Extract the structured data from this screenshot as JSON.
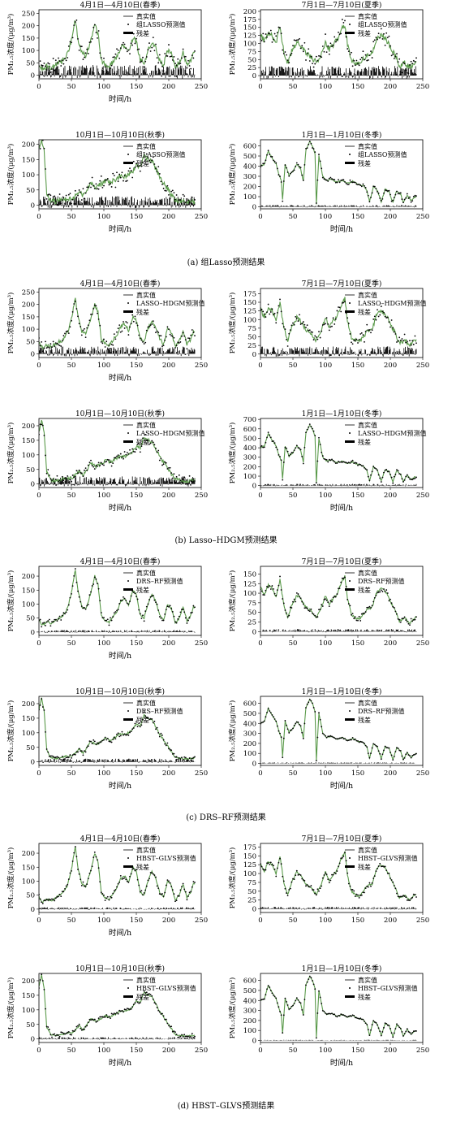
{
  "figure": {
    "captions": [
      "(a) 组Lasso预测结果",
      "(b) Lasso–HDGM预测结果",
      "(c) DRS–RF预测结果",
      "(d) HBST–GLVS预测结果"
    ],
    "colors": {
      "true": "#000000",
      "pred": "#5a9a4a",
      "residual": "#000000"
    }
  },
  "chart_data": [
    {
      "group": "a",
      "type": "line",
      "title": "4月1日—4月10日(春季)",
      "xlabel": "时间/h",
      "ylabel": "PM₂.₅浓度/(μg/m³)",
      "xlim": [
        0,
        250
      ],
      "ylim": [
        -15,
        265
      ],
      "xticks": [
        0,
        50,
        100,
        150,
        200,
        250
      ],
      "yticks": [
        0,
        50,
        100,
        150,
        200,
        250
      ],
      "legend": [
        "真实值",
        "组LASSO预测值",
        "残差"
      ],
      "season": "spring",
      "scale": 1,
      "noise": 26,
      "resid": 55
    },
    {
      "group": "a",
      "type": "line",
      "title": "7月1日—7月10日(夏季)",
      "xlabel": "",
      "ylabel": "PM₂.₅浓度/(μg/m³)",
      "xlim": [
        0,
        250
      ],
      "ylim": [
        -10,
        205
      ],
      "xticks": [
        0,
        50,
        100,
        150,
        200,
        250
      ],
      "yticks": [
        0,
        25,
        50,
        75,
        100,
        125,
        150,
        175,
        200
      ],
      "legend": [
        "真实值",
        "组LASSO预测值",
        "残差"
      ],
      "season": "summer",
      "scale": 1,
      "noise": 22,
      "resid": 40
    },
    {
      "group": "a",
      "type": "line",
      "title": "10月1日—10月10日(秋季)",
      "xlabel": "时间/h",
      "ylabel": "PM₂.₅浓度/(μg/m³)",
      "xlim": [
        0,
        250
      ],
      "ylim": [
        -12,
        215
      ],
      "xticks": [
        0,
        50,
        100,
        150,
        200,
        250
      ],
      "yticks": [
        0,
        50,
        100,
        150,
        200
      ],
      "legend": [
        "真实值",
        "组LASSO预测值",
        "残差"
      ],
      "season": "autumn",
      "scale": 1,
      "noise": 20,
      "resid": 40
    },
    {
      "group": "a",
      "type": "line",
      "title": "1月1日—1月10日(冬季)",
      "xlabel": "时间/h",
      "ylabel": "PM₂.₅浓度/(μg/m³)",
      "xlim": [
        0,
        250
      ],
      "ylim": [
        -20,
        660
      ],
      "xticks": [
        0,
        50,
        100,
        150,
        200,
        250
      ],
      "yticks": [
        0,
        100,
        200,
        300,
        400,
        500,
        600
      ],
      "legend": [
        "真实值",
        "组LASSO预测值",
        "残差"
      ],
      "season": "winter",
      "scale": 1,
      "noise": 18,
      "resid": 25
    },
    {
      "group": "b",
      "type": "line",
      "title": "4月1日—4月10日(春季)",
      "xlabel": "时间/h",
      "ylabel": "PM₂.₅浓度/(μg/m³)",
      "xlim": [
        0,
        250
      ],
      "ylim": [
        -15,
        265
      ],
      "xticks": [
        0,
        50,
        100,
        150,
        200,
        250
      ],
      "yticks": [
        0,
        50,
        100,
        150,
        200,
        250
      ],
      "legend": [
        "真实值",
        "LASSO–HDGM预测值",
        "残差"
      ],
      "season": "spring",
      "scale": 1,
      "noise": 18,
      "resid": 40
    },
    {
      "group": "b",
      "type": "line",
      "title": "7月1日—7月10日(夏季)",
      "xlabel": "",
      "ylabel": "PM₂.₅浓度/(μg/m³)",
      "xlim": [
        0,
        250
      ],
      "ylim": [
        -10,
        190
      ],
      "xticks": [
        0,
        50,
        100,
        150,
        200,
        250
      ],
      "yticks": [
        0,
        25,
        50,
        75,
        100,
        125,
        150,
        175
      ],
      "legend": [
        "真实值",
        "LASSO–HDGM预测值",
        "残差"
      ],
      "season": "summer",
      "scale": 1,
      "noise": 16,
      "resid": 30
    },
    {
      "group": "b",
      "type": "line",
      "title": "10月1日—10月10日(秋季)",
      "xlabel": "时间/h",
      "ylabel": "PM₂.₅浓度/(μg/m³)",
      "xlim": [
        0,
        250
      ],
      "ylim": [
        -12,
        225
      ],
      "xticks": [
        0,
        50,
        100,
        150,
        200,
        250
      ],
      "yticks": [
        0,
        50,
        100,
        150,
        200
      ],
      "legend": [
        "真实值",
        "LASSO–HDGM预测值",
        "残差"
      ],
      "season": "autumn",
      "scale": 1,
      "noise": 15,
      "resid": 35
    },
    {
      "group": "b",
      "type": "line",
      "title": "1月1日—1月10日(冬季)",
      "xlabel": "时间/h",
      "ylabel": "PM₂.₅浓度/(μg/m³)",
      "xlim": [
        0,
        250
      ],
      "ylim": [
        -20,
        710
      ],
      "xticks": [
        0,
        50,
        100,
        150,
        200,
        250
      ],
      "yticks": [
        0,
        100,
        200,
        300,
        400,
        500,
        600,
        700
      ],
      "legend": [
        "真实值",
        "LASSO–HDGM预测值",
        "残差"
      ],
      "season": "winter",
      "scale": 1,
      "noise": 14,
      "resid": 25
    },
    {
      "group": "c",
      "type": "line",
      "title": "4月1日—4月10日(春季)",
      "xlabel": "时间/h",
      "ylabel": "PM₂.₅浓度/(μg/m³)",
      "xlim": [
        0,
        250
      ],
      "ylim": [
        -12,
        235
      ],
      "xticks": [
        0,
        50,
        100,
        150,
        200,
        250
      ],
      "yticks": [
        0,
        50,
        100,
        150,
        200
      ],
      "legend": [
        "真实值",
        "DRS–RF预测值",
        "残差"
      ],
      "season": "spring",
      "scale": 1,
      "noise": 9,
      "resid": 10
    },
    {
      "group": "c",
      "type": "line",
      "title": "7月1日—7月10日(夏季)",
      "xlabel": "",
      "ylabel": "PM₂.₅浓度/(μg/m³)",
      "xlim": [
        0,
        250
      ],
      "ylim": [
        -10,
        170
      ],
      "xticks": [
        0,
        50,
        100,
        150,
        200,
        250
      ],
      "yticks": [
        0,
        25,
        50,
        75,
        100,
        125,
        150
      ],
      "legend": [
        "真实值",
        "DRS–RF预测值",
        "残差"
      ],
      "season": "summer",
      "scale": 0.9,
      "noise": 8,
      "resid": 9
    },
    {
      "group": "c",
      "type": "line",
      "title": "10月1日—10月10日(秋季)",
      "xlabel": "时间/h",
      "ylabel": "PM₂.₅浓度/(μg/m³)",
      "xlim": [
        0,
        250
      ],
      "ylim": [
        -12,
        225
      ],
      "xticks": [
        0,
        50,
        100,
        150,
        200,
        250
      ],
      "yticks": [
        0,
        50,
        100,
        150,
        200
      ],
      "legend": [
        "真实值",
        "DRS–RF预测值",
        "残差"
      ],
      "season": "autumn",
      "scale": 1,
      "noise": 8,
      "resid": 15
    },
    {
      "group": "c",
      "type": "line",
      "title": "1月1日—1月10日(冬季)",
      "xlabel": "时间/h",
      "ylabel": "PM₂.₅浓度/(μg/m³)",
      "xlim": [
        0,
        250
      ],
      "ylim": [
        -20,
        670
      ],
      "xticks": [
        0,
        50,
        100,
        150,
        200,
        250
      ],
      "yticks": [
        0,
        100,
        200,
        300,
        400,
        500,
        600
      ],
      "legend": [
        "真实值",
        "DRS–RF预测值",
        "残差"
      ],
      "season": "winter",
      "scale": 1,
      "noise": 8,
      "resid": 14
    },
    {
      "group": "d",
      "type": "line",
      "title": "4月1日—4月10日(春季)",
      "xlabel": "时间/h",
      "ylabel": "PM₂.₅浓度/(μg/m³)",
      "xlim": [
        0,
        250
      ],
      "ylim": [
        -12,
        235
      ],
      "xticks": [
        0,
        50,
        100,
        150,
        200,
        250
      ],
      "yticks": [
        0,
        50,
        100,
        150,
        200
      ],
      "legend": [
        "真实值",
        "HBST–GLVS预测值",
        "残差"
      ],
      "season": "spring",
      "scale": 1,
      "noise": 8,
      "resid": 9
    },
    {
      "group": "d",
      "type": "line",
      "title": "7月1日—7月10日(夏季)",
      "xlabel": "",
      "ylabel": "PM₂.₅浓度/(μg/m³)",
      "xlim": [
        0,
        250
      ],
      "ylim": [
        -10,
        185
      ],
      "xticks": [
        0,
        50,
        100,
        150,
        200,
        250
      ],
      "yticks": [
        0,
        25,
        50,
        75,
        100,
        125,
        150,
        175
      ],
      "legend": [
        "真实值",
        "HBST–GLVS预测值",
        "残差"
      ],
      "season": "summer",
      "scale": 1,
      "noise": 7,
      "resid": 8
    },
    {
      "group": "d",
      "type": "line",
      "title": "10月1日—10月10日(秋季)",
      "xlabel": "时间/h",
      "ylabel": "PM₂.₅浓度/(μg/m³)",
      "xlim": [
        0,
        250
      ],
      "ylim": [
        -12,
        225
      ],
      "xticks": [
        0,
        50,
        100,
        150,
        200,
        250
      ],
      "yticks": [
        0,
        50,
        100,
        150,
        200
      ],
      "legend": [
        "真实值",
        "HBST–GLVS预测值",
        "残差"
      ],
      "season": "autumn",
      "scale": 1,
      "noise": 7,
      "resid": 9
    },
    {
      "group": "d",
      "type": "line",
      "title": "1月1日—1月10日(冬季)",
      "xlabel": "时间/h",
      "ylabel": "PM₂.₅浓度/(μg/m³)",
      "xlim": [
        0,
        250
      ],
      "ylim": [
        -20,
        670
      ],
      "xticks": [
        0,
        50,
        100,
        150,
        200,
        250
      ],
      "yticks": [
        0,
        100,
        200,
        300,
        400,
        500,
        600
      ],
      "legend": [
        "真实值",
        "HBST–GLVS预测值",
        "残差"
      ],
      "season": "winter",
      "scale": 1,
      "noise": 7,
      "resid": 9
    }
  ]
}
